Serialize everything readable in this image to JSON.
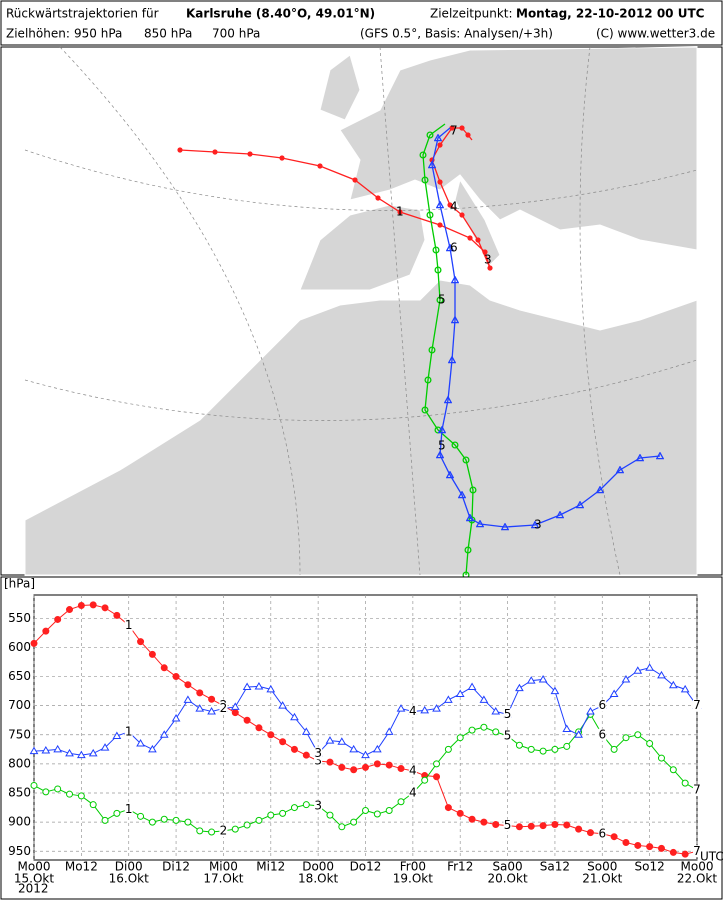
{
  "header": {
    "title": "Rückwärtstrajektorien für",
    "place": "Karlsruhe (8.40°O, 49.01°N)",
    "target_label": "Zielzeitpunkt:",
    "target_time": "Montag, 22-10-2012   00 UTC",
    "levels_label": "Zielhöhen:",
    "model": "(GFS 0.5°, Basis: Analysen/+3h)",
    "copyright": "(C) www.wetter3.de"
  },
  "chart_data": {
    "type": "line",
    "yunit": "[hPa]",
    "xunit": "UTC",
    "year": "2012",
    "x": [
      0,
      3,
      6,
      9,
      12,
      15,
      18,
      21,
      24,
      27,
      30,
      33,
      36,
      39,
      42,
      45,
      48,
      51,
      54,
      57,
      60,
      63,
      66,
      69,
      72,
      75,
      78,
      81,
      84,
      87,
      90,
      93,
      96,
      99,
      102,
      105,
      108,
      111,
      114,
      117,
      120,
      123,
      126,
      129,
      132,
      135,
      138,
      141,
      144,
      147,
      150,
      153,
      156,
      159,
      162,
      165,
      168
    ],
    "xlim": [
      0,
      168
    ],
    "xticks": [
      {
        "value": 0,
        "label": "Mo00"
      },
      {
        "value": 12,
        "label": "Mo12"
      },
      {
        "value": 24,
        "label": "Di00"
      },
      {
        "value": 36,
        "label": "Di12"
      },
      {
        "value": 48,
        "label": "Mi00"
      },
      {
        "value": 60,
        "label": "Mi12"
      },
      {
        "value": 72,
        "label": "Do00"
      },
      {
        "value": 84,
        "label": "Do12"
      },
      {
        "value": 96,
        "label": "Fr00"
      },
      {
        "value": 108,
        "label": "Fr12"
      },
      {
        "value": 120,
        "label": "Sa00"
      },
      {
        "value": 132,
        "label": "Sa12"
      },
      {
        "value": 144,
        "label": "So00"
      },
      {
        "value": 156,
        "label": "So12"
      },
      {
        "value": 168,
        "label": "Mo00"
      }
    ],
    "xtick_dates": [
      {
        "value": 0,
        "label": "15.Okt"
      },
      {
        "value": 24,
        "label": "16.Okt"
      },
      {
        "value": 48,
        "label": "17.Okt"
      },
      {
        "value": 72,
        "label": "18.Okt"
      },
      {
        "value": 96,
        "label": "19.Okt"
      },
      {
        "value": 120,
        "label": "20.Okt"
      },
      {
        "value": 144,
        "label": "21.Okt"
      },
      {
        "value": 168,
        "label": "22.Okt"
      }
    ],
    "ylim": [
      510,
      965
    ],
    "y_inverted": true,
    "yticks": [
      550,
      600,
      650,
      700,
      750,
      800,
      850,
      900,
      950
    ],
    "grid": true,
    "curve_labels": [
      "1",
      "2",
      "3",
      "4",
      "5",
      "6",
      "7"
    ],
    "series": [
      {
        "name": "950 hPa",
        "color": "#ff2020",
        "marker": "filled-circle",
        "values": [
          593,
          572,
          552,
          535,
          528,
          527,
          532,
          545,
          562,
          590,
          612,
          635,
          650,
          664,
          678,
          689,
          700,
          712,
          725,
          738,
          750,
          762,
          775,
          785,
          795,
          797,
          806,
          810,
          806,
          800,
          802,
          808,
          812,
          820,
          822,
          875,
          885,
          895,
          900,
          904,
          906,
          908,
          907,
          906,
          904,
          905,
          912,
          918,
          920,
          925,
          935,
          940,
          942,
          945,
          952,
          955,
          950
        ]
      },
      {
        "name": "850 hPa",
        "color": "#00cc00",
        "marker": "circle",
        "values": [
          837,
          848,
          843,
          852,
          855,
          870,
          897,
          885,
          878,
          890,
          900,
          895,
          897,
          900,
          915,
          917,
          915,
          912,
          905,
          897,
          888,
          885,
          875,
          870,
          872,
          888,
          908,
          900,
          880,
          886,
          880,
          865,
          850,
          828,
          800,
          775,
          755,
          742,
          737,
          745,
          752,
          768,
          775,
          778,
          775,
          770,
          745,
          715,
          750,
          775,
          755,
          750,
          765,
          790,
          810,
          833,
          845
        ]
      },
      {
        "name": "700 hPa",
        "color": "#2040ff",
        "marker": "triangle",
        "values": [
          778,
          777,
          775,
          782,
          785,
          782,
          772,
          752,
          745,
          765,
          775,
          750,
          722,
          690,
          705,
          710,
          705,
          702,
          668,
          667,
          672,
          700,
          720,
          745,
          782,
          760,
          762,
          775,
          785,
          775,
          745,
          705,
          710,
          708,
          705,
          690,
          680,
          668,
          690,
          710,
          715,
          670,
          657,
          655,
          675,
          740,
          750,
          710,
          700,
          680,
          655,
          640,
          635,
          648,
          665,
          672,
          700
        ]
      }
    ]
  }
}
